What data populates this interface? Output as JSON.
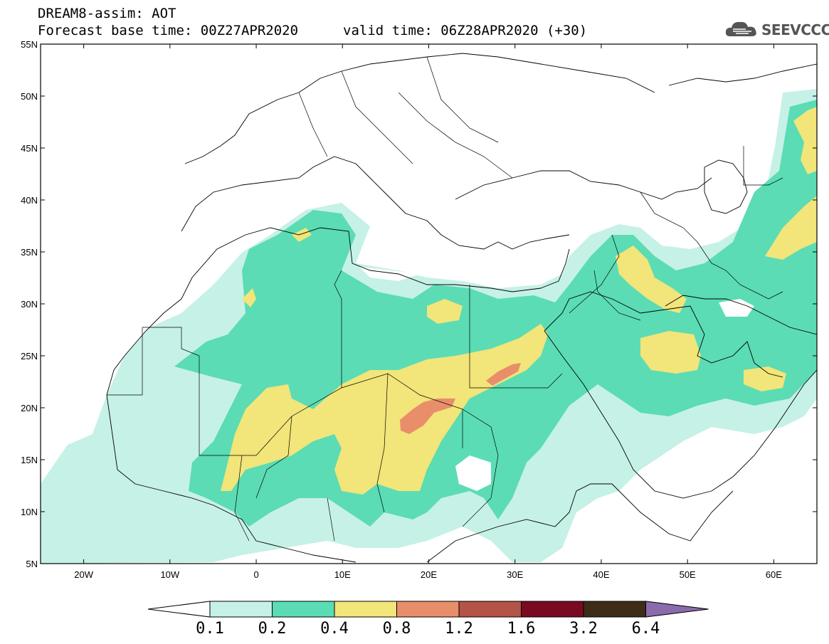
{
  "header": {
    "line1": "DREAM8-assim: AOT",
    "line2": "Forecast base time: 00Z27APR2020",
    "valid": "valid time: 06Z28APR2020 (+30)",
    "logo": "SEEVCCC"
  },
  "map": {
    "lon_range": [
      -25,
      65
    ],
    "lat_range": [
      5,
      55
    ],
    "lat_ticks": [
      "5N",
      "10N",
      "15N",
      "20N",
      "25N",
      "30N",
      "35N",
      "40N",
      "45N",
      "50N",
      "55N"
    ],
    "lon_ticks": [
      "20W",
      "10W",
      "0",
      "10E",
      "20E",
      "30E",
      "40E",
      "50E",
      "60E"
    ],
    "field": "Aerosol optical thickness (AOT)"
  },
  "colorbar": {
    "labels": [
      "0.1",
      "0.2",
      "0.4",
      "0.8",
      "1.2",
      "1.6",
      "3.2",
      "6.4"
    ],
    "colors": [
      "#c6f1e6",
      "#5bdcb4",
      "#f2e579",
      "#e98e6b",
      "#b45347",
      "#7a0a22",
      "#3e2b18",
      "#8a6bab"
    ]
  }
}
